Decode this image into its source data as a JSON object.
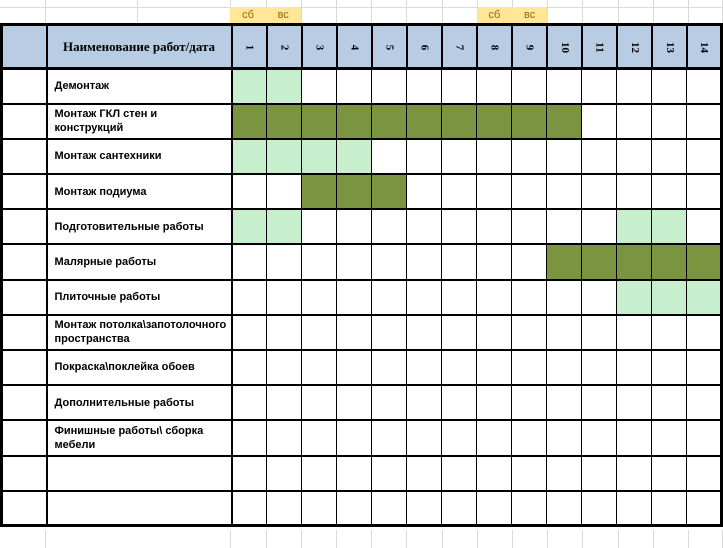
{
  "colors": {
    "header_bg": "#b8cce4",
    "task_light_green": "#c7eecd",
    "task_dark_green": "#7a9440",
    "weekend_bg": "#ffe797",
    "weekend_text": "#9c6500",
    "grid_faint": "#d9d9d9",
    "table_border": "#000000"
  },
  "weekend_markers": [
    {
      "label": "сб",
      "column": 1
    },
    {
      "label": "вс",
      "column": 2
    },
    {
      "label": "сб",
      "column": 8
    },
    {
      "label": "вс",
      "column": 9
    }
  ],
  "table": {
    "header": {
      "title": "Наименование работ/дата",
      "day_columns": [
        "1",
        "2",
        "3",
        "4",
        "5",
        "6",
        "7",
        "8",
        "9",
        "10",
        "11",
        "12",
        "13",
        "14"
      ]
    },
    "cell_legend": {
      "L": "light-green",
      "D": "dark-green",
      "-": "empty"
    },
    "rows": [
      {
        "name": "Демонтаж",
        "days": [
          "L",
          "L",
          "-",
          "-",
          "-",
          "-",
          "-",
          "-",
          "-",
          "-",
          "-",
          "-",
          "-",
          "-"
        ]
      },
      {
        "name": "Монтаж ГКЛ стен и конструкций",
        "days": [
          "D",
          "D",
          "D",
          "D",
          "D",
          "D",
          "D",
          "D",
          "D",
          "D",
          "-",
          "-",
          "-",
          "-"
        ]
      },
      {
        "name": "Монтаж сантехники",
        "days": [
          "L",
          "L",
          "L",
          "L",
          "-",
          "-",
          "-",
          "-",
          "-",
          "-",
          "-",
          "-",
          "-",
          "-"
        ]
      },
      {
        "name": "Монтаж подиума",
        "days": [
          "-",
          "-",
          "D",
          "D",
          "D",
          "-",
          "-",
          "-",
          "-",
          "-",
          "-",
          "-",
          "-",
          "-"
        ]
      },
      {
        "name": "Подготовительные работы",
        "days": [
          "L",
          "L",
          "-",
          "-",
          "-",
          "-",
          "-",
          "-",
          "-",
          "-",
          "-",
          "L",
          "L",
          "-"
        ]
      },
      {
        "name": "Малярные работы",
        "days": [
          "-",
          "-",
          "-",
          "-",
          "-",
          "-",
          "-",
          "-",
          "-",
          "D",
          "D",
          "D",
          "D",
          "D"
        ]
      },
      {
        "name": "Плиточные работы",
        "days": [
          "-",
          "-",
          "-",
          "-",
          "-",
          "-",
          "-",
          "-",
          "-",
          "-",
          "-",
          "L",
          "L",
          "L"
        ]
      },
      {
        "name": "Монтаж потолка\\запотолочного пространства",
        "days": [
          "-",
          "-",
          "-",
          "-",
          "-",
          "-",
          "-",
          "-",
          "-",
          "-",
          "-",
          "-",
          "-",
          "-"
        ]
      },
      {
        "name": "Покраска\\поклейка обоев",
        "days": [
          "-",
          "-",
          "-",
          "-",
          "-",
          "-",
          "-",
          "-",
          "-",
          "-",
          "-",
          "-",
          "-",
          "-"
        ]
      },
      {
        "name": "Дополнительные работы",
        "days": [
          "-",
          "-",
          "-",
          "-",
          "-",
          "-",
          "-",
          "-",
          "-",
          "-",
          "-",
          "-",
          "-",
          "-"
        ]
      },
      {
        "name": "Финишные работы\\ сборка мебели",
        "days": [
          "-",
          "-",
          "-",
          "-",
          "-",
          "-",
          "-",
          "-",
          "-",
          "-",
          "-",
          "-",
          "-",
          "-"
        ]
      },
      {
        "name": "",
        "days": [
          "-",
          "-",
          "-",
          "-",
          "-",
          "-",
          "-",
          "-",
          "-",
          "-",
          "-",
          "-",
          "-",
          "-"
        ]
      },
      {
        "name": "",
        "days": [
          "-",
          "-",
          "-",
          "-",
          "-",
          "-",
          "-",
          "-",
          "-",
          "-",
          "-",
          "-",
          "-",
          "-"
        ]
      }
    ]
  }
}
